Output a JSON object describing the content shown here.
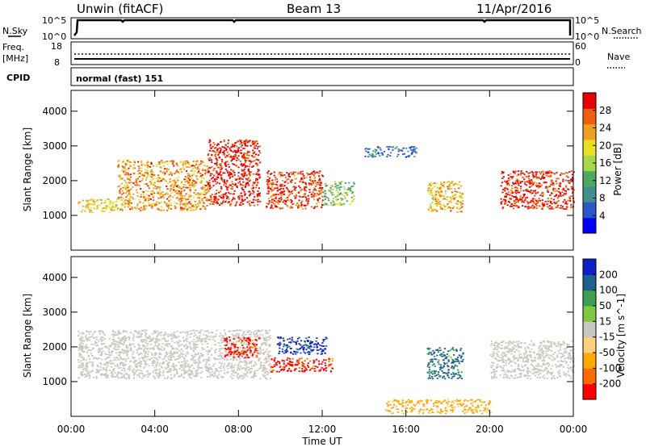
{
  "header": {
    "radar": "Unwin (fitACF)",
    "beam": "Beam 13",
    "date": "11/Apr/2016"
  },
  "noise_panel": {
    "left_label": "N.Sky",
    "left_ticks": [
      "10^5",
      "10^0"
    ],
    "right_label": "N.Search",
    "right_ticks": [
      "10^5",
      "10^0"
    ]
  },
  "freq_panel": {
    "left_label_1": "Freq.",
    "left_label_2": "[MHz]",
    "left_ticks": [
      "18",
      "8"
    ],
    "right_label": "Nave",
    "right_ticks": [
      "60",
      "0"
    ]
  },
  "cpid_panel": {
    "label": "CPID",
    "mode": "normal (fast) 151"
  },
  "x_axis": {
    "title": "Time UT",
    "ticks": [
      "00:00",
      "04:00",
      "08:00",
      "12:00",
      "16:00",
      "20:00",
      "00:00"
    ]
  },
  "colors": {
    "power_scale": [
      "#0000ff",
      "#2a58c8",
      "#3f8f8c",
      "#4ea860",
      "#a8d84a",
      "#e8e020",
      "#f0a020",
      "#ee6010",
      "#e80000"
    ],
    "velocity_scale": [
      "#ff0000",
      "#ff6a00",
      "#ffa800",
      "#ffd080",
      "#c8c8c0",
      "#80c840",
      "#3f9f50",
      "#20608f",
      "#1020c8"
    ],
    "ground_scatter": "#c8c8c0"
  },
  "chart_data": [
    {
      "type": "heatmap",
      "title": "",
      "xlabel": "Time UT",
      "ylabel": "Slant Range [km]",
      "xlim": [
        0,
        24
      ],
      "ylim": [
        0,
        4600
      ],
      "yticks": [
        1000,
        2000,
        3000,
        4000
      ],
      "colorbar": {
        "label": "Power [dB]",
        "range": [
          0,
          32
        ],
        "ticks": [
          4,
          8,
          12,
          16,
          20,
          24,
          28
        ]
      },
      "regions": [
        {
          "x": [
            0.3,
            2.2
          ],
          "y": [
            1100,
            1500
          ],
          "level": 20
        },
        {
          "x": [
            2.2,
            6.5
          ],
          "y": [
            1150,
            2600
          ],
          "level": 24
        },
        {
          "x": [
            6.5,
            9.0
          ],
          "y": [
            1300,
            3200
          ],
          "level": 30
        },
        {
          "x": [
            9.3,
            12.0
          ],
          "y": [
            1200,
            2300
          ],
          "level": 28
        },
        {
          "x": [
            12.0,
            13.5
          ],
          "y": [
            1300,
            2000
          ],
          "level": 14
        },
        {
          "x": [
            14.0,
            16.5
          ],
          "y": [
            2700,
            3000
          ],
          "level": 8
        },
        {
          "x": [
            17.0,
            18.7
          ],
          "y": [
            1100,
            2000
          ],
          "level": 22
        },
        {
          "x": [
            20.5,
            24.0
          ],
          "y": [
            1200,
            2300
          ],
          "level": 29
        }
      ]
    },
    {
      "type": "heatmap",
      "title": "",
      "xlabel": "Time UT",
      "ylabel": "Slant Range [km]",
      "xlim": [
        0,
        24
      ],
      "ylim": [
        0,
        4600
      ],
      "yticks": [
        1000,
        2000,
        3000,
        4000
      ],
      "colorbar": {
        "label": "Velocity [m s^-1]",
        "ticks": [
          "200",
          "100",
          "50",
          "15",
          "-15",
          "-50",
          "-100",
          "-200"
        ]
      },
      "regions": [
        {
          "x": [
            0.3,
            9.5
          ],
          "y": [
            1100,
            2500
          ],
          "level": "ground"
        },
        {
          "x": [
            7.3,
            9.0
          ],
          "y": [
            1700,
            2300
          ],
          "level": -200
        },
        {
          "x": [
            9.5,
            12.5
          ],
          "y": [
            1300,
            1700
          ],
          "level": -200
        },
        {
          "x": [
            9.8,
            12.2
          ],
          "y": [
            1800,
            2300
          ],
          "level": 200
        },
        {
          "x": [
            17.0,
            18.7
          ],
          "y": [
            1100,
            2000
          ],
          "level": 100
        },
        {
          "x": [
            15.0,
            20.0
          ],
          "y": [
            100,
            500
          ],
          "level": -50
        },
        {
          "x": [
            20.0,
            24.0
          ],
          "y": [
            1100,
            2200
          ],
          "level": "ground"
        }
      ]
    }
  ]
}
